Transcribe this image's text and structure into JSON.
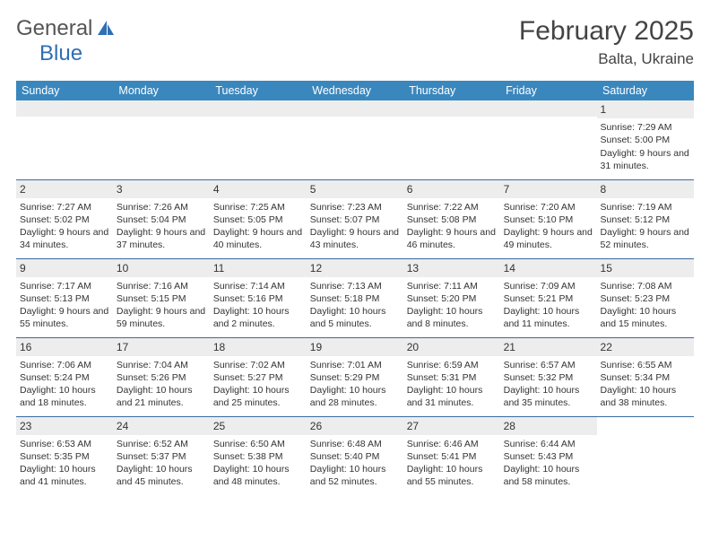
{
  "branding": {
    "word1": "General",
    "word2": "Blue"
  },
  "title": "February 2025",
  "location": "Balta, Ukraine",
  "colors": {
    "header_bg": "#3a87be",
    "header_text": "#ffffff",
    "row_sep": "#3a6aa0",
    "daynum_bg": "#ededed",
    "brand_gray": "#555555",
    "brand_blue": "#2f6fb3",
    "text": "#333333",
    "page_bg": "#ffffff"
  },
  "fonts": {
    "title_size": 30,
    "location_size": 17,
    "header_size": 12.5,
    "cell_size": 10.5
  },
  "weekdays": [
    "Sunday",
    "Monday",
    "Tuesday",
    "Wednesday",
    "Thursday",
    "Friday",
    "Saturday"
  ],
  "weeks": [
    [
      null,
      null,
      null,
      null,
      null,
      null,
      {
        "day": "1",
        "sunrise": "Sunrise: 7:29 AM",
        "sunset": "Sunset: 5:00 PM",
        "daylight": "Daylight: 9 hours and 31 minutes."
      }
    ],
    [
      {
        "day": "2",
        "sunrise": "Sunrise: 7:27 AM",
        "sunset": "Sunset: 5:02 PM",
        "daylight": "Daylight: 9 hours and 34 minutes."
      },
      {
        "day": "3",
        "sunrise": "Sunrise: 7:26 AM",
        "sunset": "Sunset: 5:04 PM",
        "daylight": "Daylight: 9 hours and 37 minutes."
      },
      {
        "day": "4",
        "sunrise": "Sunrise: 7:25 AM",
        "sunset": "Sunset: 5:05 PM",
        "daylight": "Daylight: 9 hours and 40 minutes."
      },
      {
        "day": "5",
        "sunrise": "Sunrise: 7:23 AM",
        "sunset": "Sunset: 5:07 PM",
        "daylight": "Daylight: 9 hours and 43 minutes."
      },
      {
        "day": "6",
        "sunrise": "Sunrise: 7:22 AM",
        "sunset": "Sunset: 5:08 PM",
        "daylight": "Daylight: 9 hours and 46 minutes."
      },
      {
        "day": "7",
        "sunrise": "Sunrise: 7:20 AM",
        "sunset": "Sunset: 5:10 PM",
        "daylight": "Daylight: 9 hours and 49 minutes."
      },
      {
        "day": "8",
        "sunrise": "Sunrise: 7:19 AM",
        "sunset": "Sunset: 5:12 PM",
        "daylight": "Daylight: 9 hours and 52 minutes."
      }
    ],
    [
      {
        "day": "9",
        "sunrise": "Sunrise: 7:17 AM",
        "sunset": "Sunset: 5:13 PM",
        "daylight": "Daylight: 9 hours and 55 minutes."
      },
      {
        "day": "10",
        "sunrise": "Sunrise: 7:16 AM",
        "sunset": "Sunset: 5:15 PM",
        "daylight": "Daylight: 9 hours and 59 minutes."
      },
      {
        "day": "11",
        "sunrise": "Sunrise: 7:14 AM",
        "sunset": "Sunset: 5:16 PM",
        "daylight": "Daylight: 10 hours and 2 minutes."
      },
      {
        "day": "12",
        "sunrise": "Sunrise: 7:13 AM",
        "sunset": "Sunset: 5:18 PM",
        "daylight": "Daylight: 10 hours and 5 minutes."
      },
      {
        "day": "13",
        "sunrise": "Sunrise: 7:11 AM",
        "sunset": "Sunset: 5:20 PM",
        "daylight": "Daylight: 10 hours and 8 minutes."
      },
      {
        "day": "14",
        "sunrise": "Sunrise: 7:09 AM",
        "sunset": "Sunset: 5:21 PM",
        "daylight": "Daylight: 10 hours and 11 minutes."
      },
      {
        "day": "15",
        "sunrise": "Sunrise: 7:08 AM",
        "sunset": "Sunset: 5:23 PM",
        "daylight": "Daylight: 10 hours and 15 minutes."
      }
    ],
    [
      {
        "day": "16",
        "sunrise": "Sunrise: 7:06 AM",
        "sunset": "Sunset: 5:24 PM",
        "daylight": "Daylight: 10 hours and 18 minutes."
      },
      {
        "day": "17",
        "sunrise": "Sunrise: 7:04 AM",
        "sunset": "Sunset: 5:26 PM",
        "daylight": "Daylight: 10 hours and 21 minutes."
      },
      {
        "day": "18",
        "sunrise": "Sunrise: 7:02 AM",
        "sunset": "Sunset: 5:27 PM",
        "daylight": "Daylight: 10 hours and 25 minutes."
      },
      {
        "day": "19",
        "sunrise": "Sunrise: 7:01 AM",
        "sunset": "Sunset: 5:29 PM",
        "daylight": "Daylight: 10 hours and 28 minutes."
      },
      {
        "day": "20",
        "sunrise": "Sunrise: 6:59 AM",
        "sunset": "Sunset: 5:31 PM",
        "daylight": "Daylight: 10 hours and 31 minutes."
      },
      {
        "day": "21",
        "sunrise": "Sunrise: 6:57 AM",
        "sunset": "Sunset: 5:32 PM",
        "daylight": "Daylight: 10 hours and 35 minutes."
      },
      {
        "day": "22",
        "sunrise": "Sunrise: 6:55 AM",
        "sunset": "Sunset: 5:34 PM",
        "daylight": "Daylight: 10 hours and 38 minutes."
      }
    ],
    [
      {
        "day": "23",
        "sunrise": "Sunrise: 6:53 AM",
        "sunset": "Sunset: 5:35 PM",
        "daylight": "Daylight: 10 hours and 41 minutes."
      },
      {
        "day": "24",
        "sunrise": "Sunrise: 6:52 AM",
        "sunset": "Sunset: 5:37 PM",
        "daylight": "Daylight: 10 hours and 45 minutes."
      },
      {
        "day": "25",
        "sunrise": "Sunrise: 6:50 AM",
        "sunset": "Sunset: 5:38 PM",
        "daylight": "Daylight: 10 hours and 48 minutes."
      },
      {
        "day": "26",
        "sunrise": "Sunrise: 6:48 AM",
        "sunset": "Sunset: 5:40 PM",
        "daylight": "Daylight: 10 hours and 52 minutes."
      },
      {
        "day": "27",
        "sunrise": "Sunrise: 6:46 AM",
        "sunset": "Sunset: 5:41 PM",
        "daylight": "Daylight: 10 hours and 55 minutes."
      },
      {
        "day": "28",
        "sunrise": "Sunrise: 6:44 AM",
        "sunset": "Sunset: 5:43 PM",
        "daylight": "Daylight: 10 hours and 58 minutes."
      },
      null
    ]
  ]
}
